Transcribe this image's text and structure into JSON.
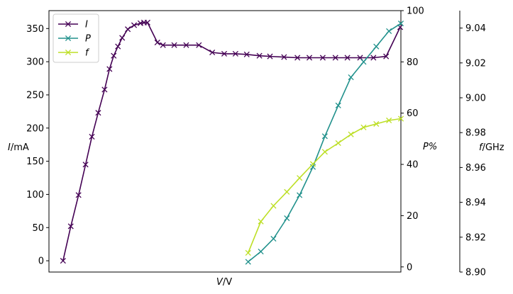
{
  "chart_data": {
    "type": "line",
    "xlabel": "V/V",
    "axes": [
      {
        "key": "I",
        "label": "I/mA",
        "ylim": [
          -17,
          377
        ],
        "ticks": [
          0,
          50,
          100,
          150,
          200,
          250,
          300,
          350
        ],
        "side": "left"
      },
      {
        "key": "P",
        "label": "P%",
        "ylim": [
          -2,
          100
        ],
        "ticks": [
          0,
          20,
          40,
          60,
          80,
          100
        ],
        "side": "right"
      },
      {
        "key": "f",
        "label": "f/GHz",
        "ylim": [
          8.9,
          9.05
        ],
        "ticks": [
          "8.90",
          "8.92",
          "8.94",
          "8.96",
          "8.98",
          "9.00",
          "9.02",
          "9.04"
        ],
        "side": "right-offset"
      }
    ],
    "xlim": [
      0,
      50
    ],
    "series": [
      {
        "name": "I",
        "axis": "I",
        "color": "#440154",
        "marker": "x",
        "x": [
          2,
          3.1,
          4.2,
          5.2,
          6.1,
          7,
          7.9,
          8.6,
          9.2,
          9.8,
          10.4,
          11.2,
          12.1,
          13,
          13.5,
          14,
          15.4,
          16.2,
          17.8,
          19.5,
          21.3,
          23.2,
          24.9,
          26.5,
          28.1,
          29.9,
          31.4,
          33.4,
          35.3,
          37,
          38.9,
          40.7,
          42.4,
          44.2,
          46.1,
          47.9,
          49.9
        ],
        "y": [
          0,
          52,
          99,
          145,
          187,
          223,
          258,
          289,
          309,
          323,
          336,
          349,
          355,
          358,
          359,
          359,
          329,
          325,
          325,
          325,
          325,
          314,
          312,
          312,
          311,
          309,
          308,
          307,
          306,
          306,
          306,
          306,
          306,
          306,
          306,
          308,
          352
        ]
      },
      {
        "name": "P",
        "axis": "P",
        "color": "#21918c",
        "marker": "x",
        "x": [
          28.3,
          30.1,
          31.9,
          33.8,
          35.6,
          37.5,
          39.2,
          41.1,
          42.9,
          44.7,
          46.5,
          48.3,
          50
        ],
        "y": [
          2,
          6,
          11,
          19,
          28,
          39,
          51,
          63,
          74,
          80,
          86,
          92,
          95
        ]
      },
      {
        "name": "f",
        "axis": "f",
        "color": "#bddf26",
        "marker": "x",
        "x": [
          28.3,
          30.1,
          31.9,
          33.8,
          35.6,
          37.5,
          39.2,
          41.1,
          42.9,
          44.7,
          46.5,
          48.3,
          50
        ],
        "y": [
          8.911,
          8.929,
          8.938,
          8.946,
          8.954,
          8.962,
          8.969,
          8.974,
          8.979,
          8.983,
          8.985,
          8.987,
          8.988
        ]
      }
    ],
    "legend": {
      "placement": "top-left",
      "entries": [
        "I",
        "P",
        "f"
      ]
    }
  }
}
